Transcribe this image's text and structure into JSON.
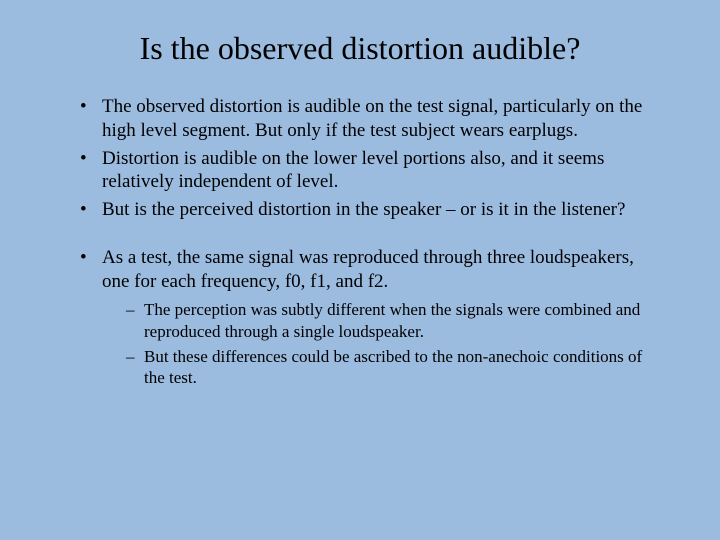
{
  "title": "Is the observed distortion audible?",
  "bullets": [
    "The observed distortion is audible on the test signal, particularly on the high level segment.  But only if the test subject wears earplugs.",
    "Distortion is audible on the lower level portions also, and it seems relatively independent of level.",
    "But is the perceived distortion in the speaker – or is it in the listener?",
    "As a test, the same signal was reproduced through three loudspeakers, one for each frequency, f0, f1, and f2."
  ],
  "sub_bullets": [
    "The perception was subtly different when the signals were combined and reproduced through a single loudspeaker.",
    "But these differences could be ascribed to the non-anechoic conditions of the test."
  ],
  "colors": {
    "background": "#9bbbdf",
    "text": "#000000"
  },
  "typography": {
    "title_fontsize": 32,
    "body_fontsize": 19,
    "sub_fontsize": 17,
    "font_family": "Times New Roman"
  }
}
